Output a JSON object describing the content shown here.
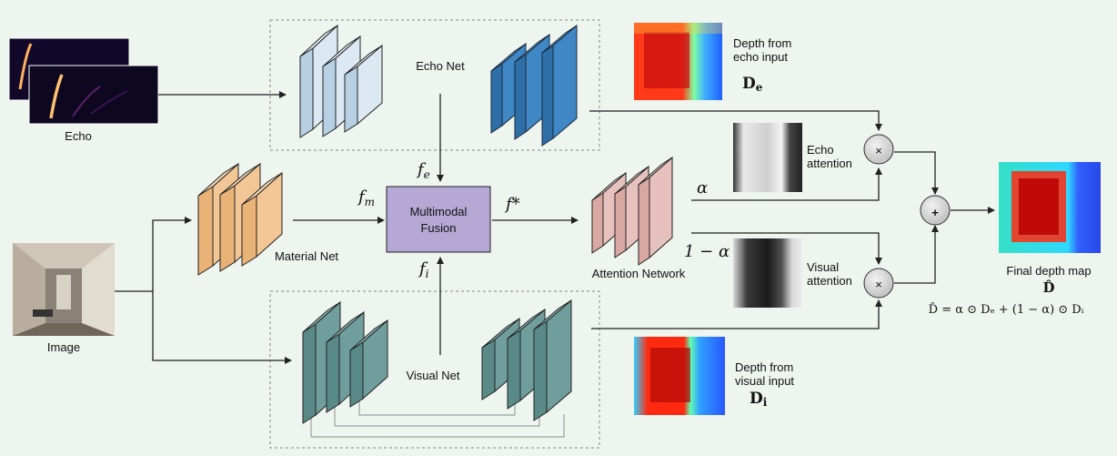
{
  "labels": {
    "echo": "Echo",
    "image": "Image",
    "echo_net": "Echo Net",
    "material_net": "Material Net",
    "visual_net": "Visual Net",
    "fusion_line1": "Multimodal",
    "fusion_line2": "Fusion",
    "attention_network": "Attention Network",
    "echo_attention_1": "Echo",
    "echo_attention_2": "attention",
    "visual_attention_1": "Visual",
    "visual_attention_2": "attention",
    "depth_echo_1": "Depth from",
    "depth_echo_2": "echo input",
    "depth_echo_sym": "D",
    "depth_echo_sub": "e",
    "depth_visual_1": "Depth from",
    "depth_visual_2": "visual input",
    "depth_visual_sym": "D",
    "depth_visual_sub": "i",
    "final_depth": "Final depth map",
    "final_sym": "D̂",
    "equation": "D̂ = α ⊙ Dₑ + (1 − α) ⊙ Dᵢ"
  },
  "symbols": {
    "fe_base": "f",
    "fe_sub": "e",
    "fm_base": "f",
    "fm_sub": "m",
    "fi_base": "f",
    "fi_sub": "i",
    "fstar": "f*",
    "alpha": "α",
    "one_minus_alpha": "1 − α",
    "multiply": "×",
    "plus": "+"
  },
  "colors": {
    "echo_light": "#c9dcea",
    "echo_dark": "#3f87c5",
    "material": "#f2c795",
    "visual": "#6f9e9c",
    "attention": "#e7c1bd",
    "fusion": "#b5a8d4"
  }
}
